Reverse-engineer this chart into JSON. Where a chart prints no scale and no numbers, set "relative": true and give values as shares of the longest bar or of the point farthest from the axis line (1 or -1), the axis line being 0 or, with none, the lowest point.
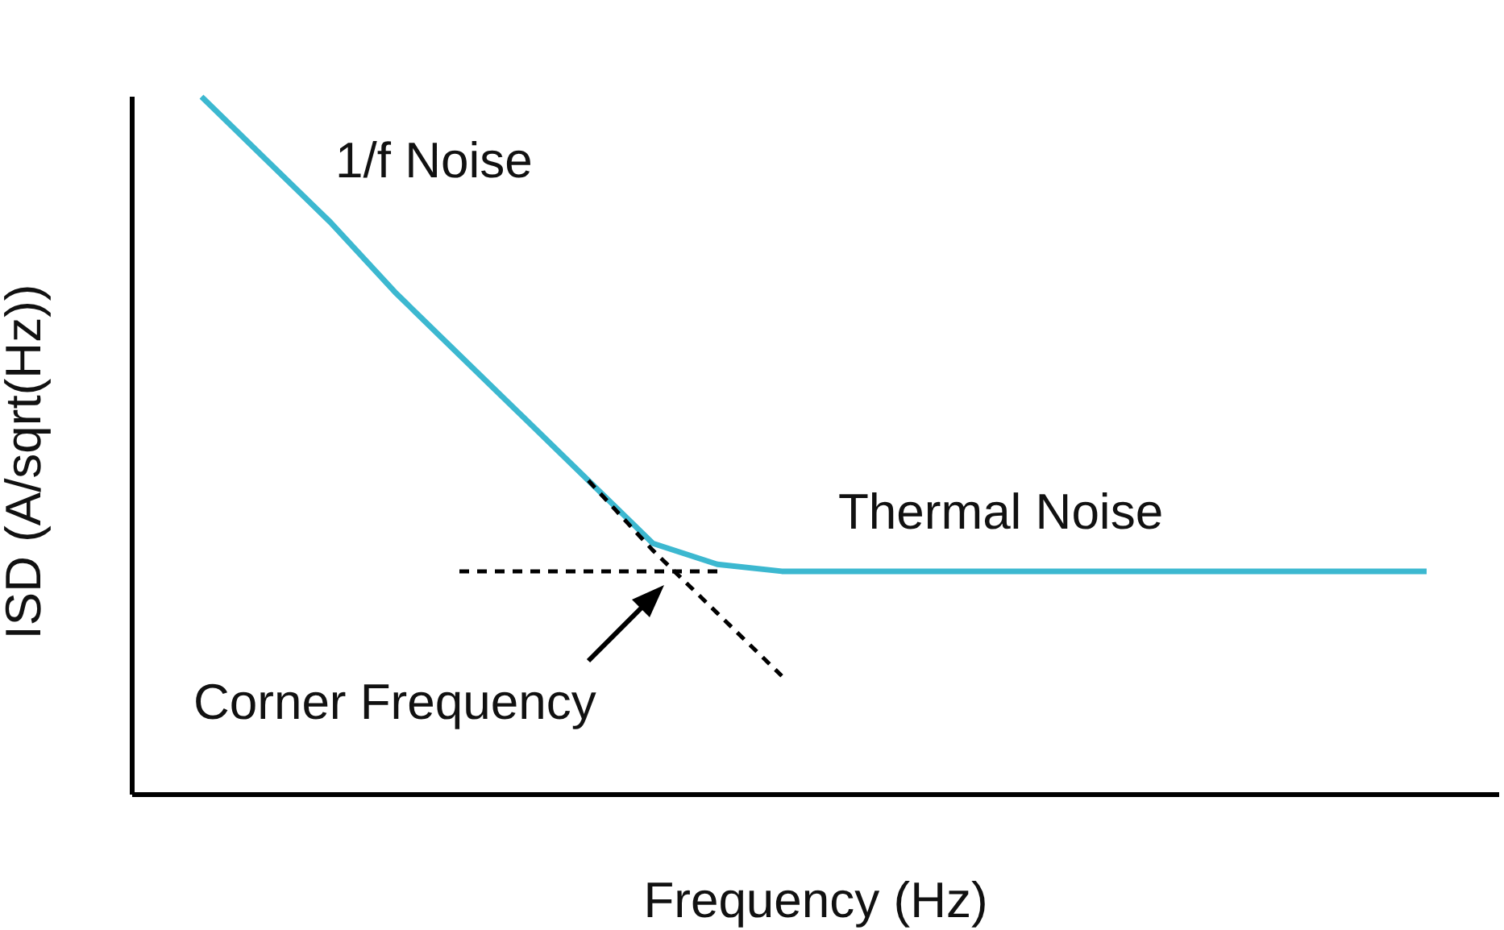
{
  "chart_data": {
    "type": "line",
    "relative": true,
    "xlabel": "Frequency (Hz)",
    "ylabel": "ISD (A/sqrt(Hz))",
    "categories": [
      null,
      null,
      null,
      null,
      null,
      null,
      null,
      null,
      null,
      null,
      null,
      null,
      null,
      null,
      null,
      null,
      null,
      null,
      null,
      null
    ],
    "series": [
      {
        "color": "#3cb8d0",
        "values": [
          1,
          0.91,
          0.82,
          0.72,
          0.63,
          0.54,
          0.45,
          0.36,
          0.33,
          0.32,
          0.32,
          0.32,
          0.32,
          0.32,
          0.32,
          0.32,
          0.32,
          0.32,
          0.32,
          0.32
        ]
      },
      {
        "color": "#000000",
        "line_style": "dashed",
        "values": [
          null,
          null,
          null,
          null,
          0.32,
          0.32,
          0.32,
          0.32,
          0.32,
          null,
          null,
          null,
          null,
          null,
          null,
          null,
          null,
          null,
          null,
          null
        ]
      },
      {
        "color": "#000000",
        "line_style": "dashed",
        "values": [
          null,
          null,
          null,
          null,
          null,
          null,
          0.45,
          0.35,
          0.26,
          0.17,
          null,
          null,
          null,
          null,
          null,
          null,
          null,
          null,
          null,
          null
        ]
      }
    ],
    "annotations": [
      "1/f Noise",
      "Thermal Noise",
      "Corner Frequency"
    ],
    "line_style": "solid"
  }
}
